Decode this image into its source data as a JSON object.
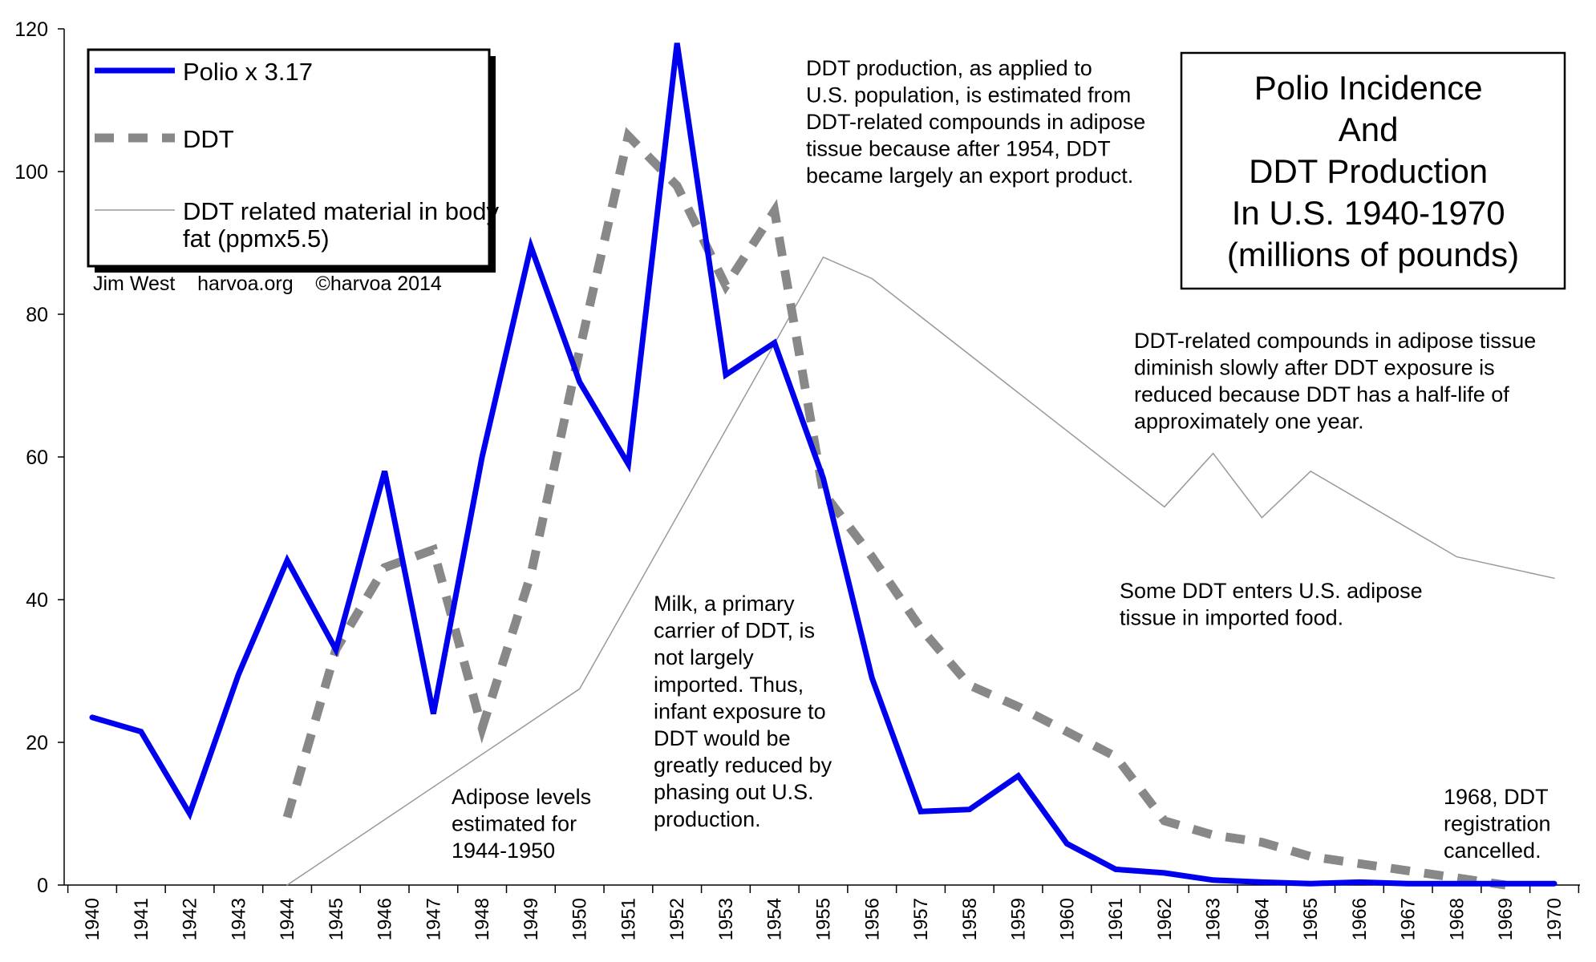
{
  "chart_data": {
    "type": "line",
    "title_lines": [
      "Polio Incidence",
      "And",
      "DDT Production",
      "In U.S. 1940-1970",
      "(millions of pounds)"
    ],
    "x": [
      1940,
      1941,
      1942,
      1943,
      1944,
      1945,
      1946,
      1947,
      1948,
      1949,
      1950,
      1951,
      1952,
      1953,
      1954,
      1955,
      1956,
      1957,
      1958,
      1959,
      1960,
      1961,
      1962,
      1963,
      1964,
      1965,
      1966,
      1967,
      1968,
      1969,
      1970
    ],
    "ylim": [
      0,
      120
    ],
    "yticks": [
      0,
      20,
      40,
      60,
      80,
      100,
      120
    ],
    "grid": false,
    "series": [
      {
        "name": "Polio x 3.17",
        "color": "#0000ee",
        "style": "solid-thick",
        "values": [
          23.5,
          21.5,
          10,
          29.5,
          45.5,
          33,
          58,
          24,
          60,
          89.5,
          70.5,
          59,
          118,
          71.5,
          76,
          57,
          29,
          10.3,
          10.6,
          15.3,
          5.8,
          2.2,
          1.7,
          0.7,
          0.4,
          0.2,
          0.4,
          0.2,
          0.2,
          0.2,
          0.2
        ]
      },
      {
        "name": "DDT",
        "color": "#888888",
        "style": "dashed",
        "values": [
          null,
          null,
          null,
          null,
          9.5,
          33,
          44.5,
          47,
          22,
          43.5,
          75,
          105,
          98,
          84,
          94.5,
          55,
          46,
          36,
          28,
          25,
          21.5,
          18,
          9,
          7,
          6,
          4,
          3,
          2,
          1,
          0,
          null
        ]
      },
      {
        "name": "DDT related material in body fat (ppmx5.5)",
        "color": "#999999",
        "style": "thin",
        "values": [
          null,
          null,
          null,
          null,
          0,
          null,
          null,
          null,
          null,
          null,
          27.5,
          null,
          null,
          null,
          null,
          88,
          85,
          null,
          null,
          null,
          null,
          null,
          53,
          60.5,
          51.5,
          58,
          null,
          null,
          46,
          null,
          43
        ]
      }
    ],
    "legend": {
      "items": [
        {
          "label": "Polio x 3.17"
        },
        {
          "label_lines": [
            "DDT"
          ]
        },
        {
          "label_lines": [
            "DDT related material in body",
            "fat (ppmx5.5)"
          ]
        }
      ],
      "credit": "Jim West    harvoa.org    ©harvoa 2014"
    },
    "annotations": [
      {
        "lines": [
          "DDT production, as applied to",
          "U.S. population, is estimated from",
          "DDT-related compounds in adipose",
          "tissue because after 1954, DDT",
          "became largely an export product."
        ]
      },
      {
        "lines": [
          "DDT-related compounds in adipose tissue",
          "diminish slowly after DDT exposure is",
          "reduced because DDT has a half-life of",
          "approximately one year."
        ]
      },
      {
        "lines": [
          "Some DDT enters U.S. adipose",
          "tissue in imported food."
        ]
      },
      {
        "lines": [
          "Milk, a primary",
          "carrier of DDT, is",
          "not largely",
          "imported. Thus,",
          "infant exposure to",
          "DDT would be",
          "greatly reduced by",
          "phasing out U.S.",
          "production."
        ]
      },
      {
        "lines": [
          "Adipose levels",
          "estimated for",
          "1944-1950"
        ]
      },
      {
        "lines": [
          "1968, DDT",
          "registration",
          "cancelled."
        ]
      }
    ]
  }
}
